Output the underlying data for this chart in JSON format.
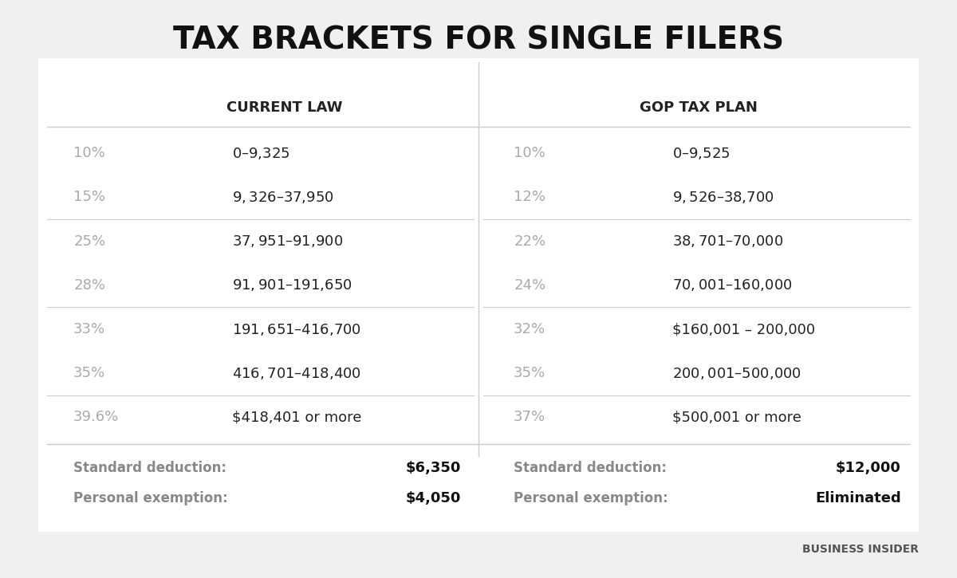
{
  "title": "TAX BRACKETS FOR SINGLE FILERS",
  "title_fontsize": 28,
  "background_color": "#f0f0f0",
  "table_background": "#ffffff",
  "col_header_left": "CURRENT LAW",
  "col_header_right": "GOP TAX PLAN",
  "header_fontsize": 13,
  "header_color": "#222222",
  "current_law_rows": [
    {
      "rate": "10%",
      "range": "$0 – $9,325"
    },
    {
      "rate": "15%",
      "range": "$9,326 – $37,950"
    },
    {
      "rate": "25%",
      "range": "$37,951 – $91,900"
    },
    {
      "rate": "28%",
      "range": "$91,901 – $191,650"
    },
    {
      "rate": "33%",
      "range": "$191,651 – $416,700"
    },
    {
      "rate": "35%",
      "range": "$416,701 – $418,400"
    },
    {
      "rate": "39.6%",
      "range": "$418,401 or more"
    }
  ],
  "gop_rows": [
    {
      "rate": "10%",
      "range": "$0 – $9,525"
    },
    {
      "rate": "12%",
      "range": "$9,526 – $38,700"
    },
    {
      "rate": "22%",
      "range": "$38,701 – $70,000"
    },
    {
      "rate": "24%",
      "range": "$70,001 – $160,000"
    },
    {
      "rate": "32%",
      "range": "$160,001 – 200,000"
    },
    {
      "rate": "35%",
      "range": "$200,001 – $500,000"
    },
    {
      "rate": "37%",
      "range": "$500,001 or more"
    }
  ],
  "footer_rows": [
    {
      "label_left": "Standard deduction:",
      "value_left": "$6,350",
      "label_right": "Standard deduction:",
      "value_right": "$12,000"
    },
    {
      "label_left": "Personal exemption:",
      "value_left": "$4,050",
      "label_right": "Personal exemption:",
      "value_right": "Eliminated"
    }
  ],
  "rate_color": "#aaaaaa",
  "range_color_left": "#222222",
  "range_color_right": "#222222",
  "gop_rate_color": "#aaaaaa",
  "divider_color": "#cccccc",
  "footer_label_color": "#888888",
  "footer_value_color": "#111111",
  "watermark": "BUSINESS INSIDER",
  "row_fontsize": 13,
  "footer_fontsize": 12
}
